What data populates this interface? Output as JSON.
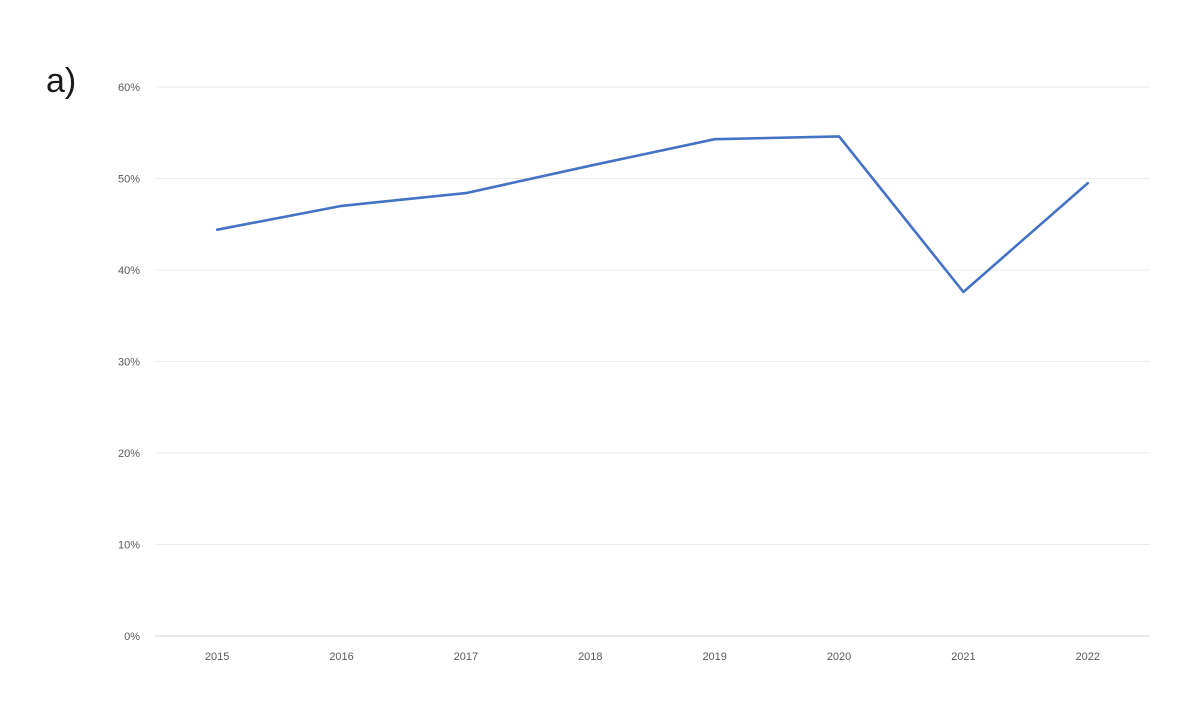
{
  "panel_label": "a)",
  "colors": {
    "series": "#4472c4",
    "grid": "#ececec",
    "tick_text": "#595959"
  },
  "chart_data": {
    "type": "line",
    "title": "",
    "xlabel": "",
    "ylabel": "",
    "x": [
      "2015",
      "2016",
      "2017",
      "2018",
      "2019",
      "2020",
      "2021",
      "2022"
    ],
    "ylim": [
      0,
      60
    ],
    "y_ticks": [
      0,
      10,
      20,
      30,
      40,
      50,
      60
    ],
    "y_tick_labels": [
      "0%",
      "10%",
      "20%",
      "30%",
      "40%",
      "50%",
      "60%"
    ],
    "grid": true,
    "legend": "none",
    "series": [
      {
        "values": [
          44.4,
          47.0,
          48.4,
          51.4,
          54.3,
          54.6,
          37.6,
          49.5
        ]
      }
    ]
  }
}
